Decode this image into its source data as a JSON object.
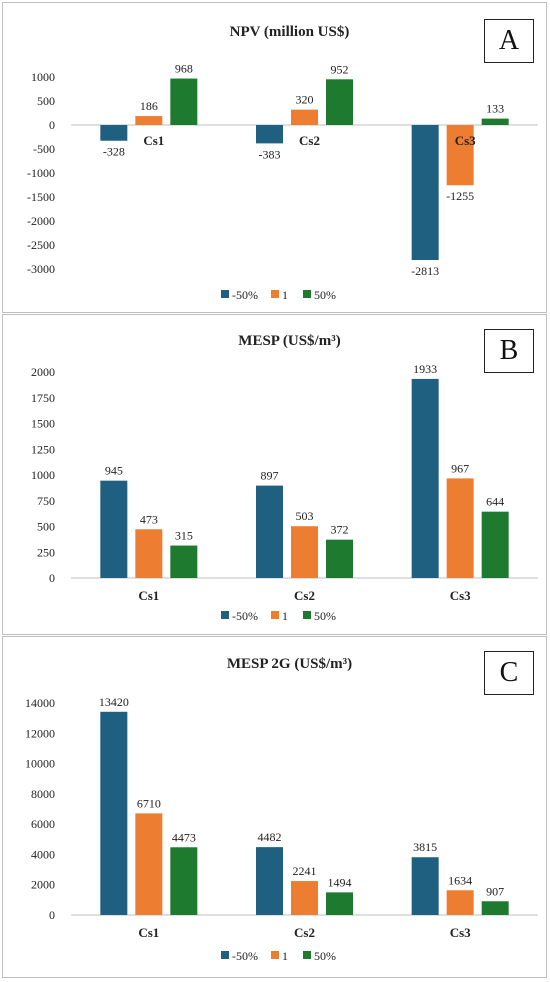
{
  "colors": {
    "s1": "#1f5f7f",
    "s2": "#ed7d31",
    "s3": "#1e7a2e",
    "grid": "#d9d9d9",
    "axis": "#bfbfbf",
    "text": "#222222"
  },
  "chart_data": [
    {
      "type": "bar",
      "letter": "A",
      "title": "NPV (million  US$)",
      "categories": [
        "Cs1",
        "Cs2",
        "Cs3"
      ],
      "series": [
        {
          "name": "-50%",
          "values": [
            -328,
            -383,
            -2813
          ]
        },
        {
          "name": "1",
          "values": [
            186,
            320,
            -1255
          ]
        },
        {
          "name": "50%",
          "values": [
            968,
            952,
            133
          ]
        }
      ],
      "ylim": [
        -3000,
        1000
      ],
      "yticks": [
        1000,
        500,
        0,
        -500,
        -1000,
        -1500,
        -2000,
        -2500,
        -3000
      ],
      "category_labels_at_zero": true,
      "legend": "bottom",
      "grid": false
    },
    {
      "type": "bar",
      "letter": "B",
      "title": "MESP (US$/m³)",
      "categories": [
        "Cs1",
        "Cs2",
        "Cs3"
      ],
      "series": [
        {
          "name": "-50%",
          "values": [
            945,
            897,
            1933
          ]
        },
        {
          "name": "1",
          "values": [
            473,
            503,
            967
          ]
        },
        {
          "name": "50%",
          "values": [
            315,
            372,
            644
          ]
        }
      ],
      "ylim": [
        0,
        2000
      ],
      "yticks": [
        2000,
        1750,
        1500,
        1250,
        1000,
        750,
        500,
        250,
        0
      ],
      "legend": "bottom",
      "grid": false
    },
    {
      "type": "bar",
      "letter": "C",
      "title": "MESP 2G (US$/m³)",
      "categories": [
        "Cs1",
        "Cs2",
        "Cs3"
      ],
      "series": [
        {
          "name": "-50%",
          "values": [
            13420,
            4482,
            3815
          ]
        },
        {
          "name": "1",
          "values": [
            6710,
            2241,
            1634
          ]
        },
        {
          "name": "50%",
          "values": [
            4473,
            1494,
            907
          ]
        }
      ],
      "ylim": [
        0,
        14000
      ],
      "yticks": [
        14000,
        12000,
        10000,
        8000,
        6000,
        4000,
        2000,
        0
      ],
      "legend": "bottom",
      "grid": false
    }
  ]
}
